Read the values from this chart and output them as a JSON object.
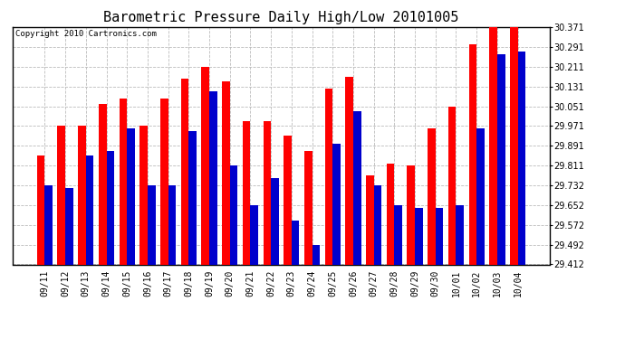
{
  "title": "Barometric Pressure Daily High/Low 20101005",
  "copyright_text": "Copyright 2010 Cartronics.com",
  "categories": [
    "09/11",
    "09/12",
    "09/13",
    "09/14",
    "09/15",
    "09/16",
    "09/17",
    "09/18",
    "09/19",
    "09/20",
    "09/21",
    "09/22",
    "09/23",
    "09/24",
    "09/25",
    "09/26",
    "09/27",
    "09/28",
    "09/29",
    "09/30",
    "10/01",
    "10/02",
    "10/03",
    "10/04"
  ],
  "highs": [
    29.851,
    29.971,
    29.971,
    30.061,
    30.081,
    29.971,
    30.081,
    30.161,
    30.211,
    30.151,
    29.991,
    29.991,
    29.931,
    29.871,
    30.121,
    30.171,
    29.771,
    29.821,
    29.811,
    29.961,
    30.051,
    30.301,
    30.371,
    30.371
  ],
  "lows": [
    29.731,
    29.721,
    29.851,
    29.871,
    29.961,
    29.731,
    29.731,
    29.951,
    30.111,
    29.811,
    29.651,
    29.761,
    29.591,
    29.491,
    29.901,
    30.031,
    29.731,
    29.651,
    29.641,
    29.641,
    29.651,
    29.961,
    30.261,
    30.271
  ],
  "high_color": "#ff0000",
  "low_color": "#0000cc",
  "background_color": "#ffffff",
  "grid_color": "#bbbbbb",
  "ylim_min": 29.412,
  "ylim_max": 30.371,
  "yticks": [
    29.412,
    29.492,
    29.572,
    29.652,
    29.732,
    29.811,
    29.891,
    29.971,
    30.051,
    30.131,
    30.211,
    30.291,
    30.371
  ],
  "title_fontsize": 11,
  "tick_fontsize": 7,
  "copyright_fontsize": 6.5,
  "bar_width": 0.38
}
